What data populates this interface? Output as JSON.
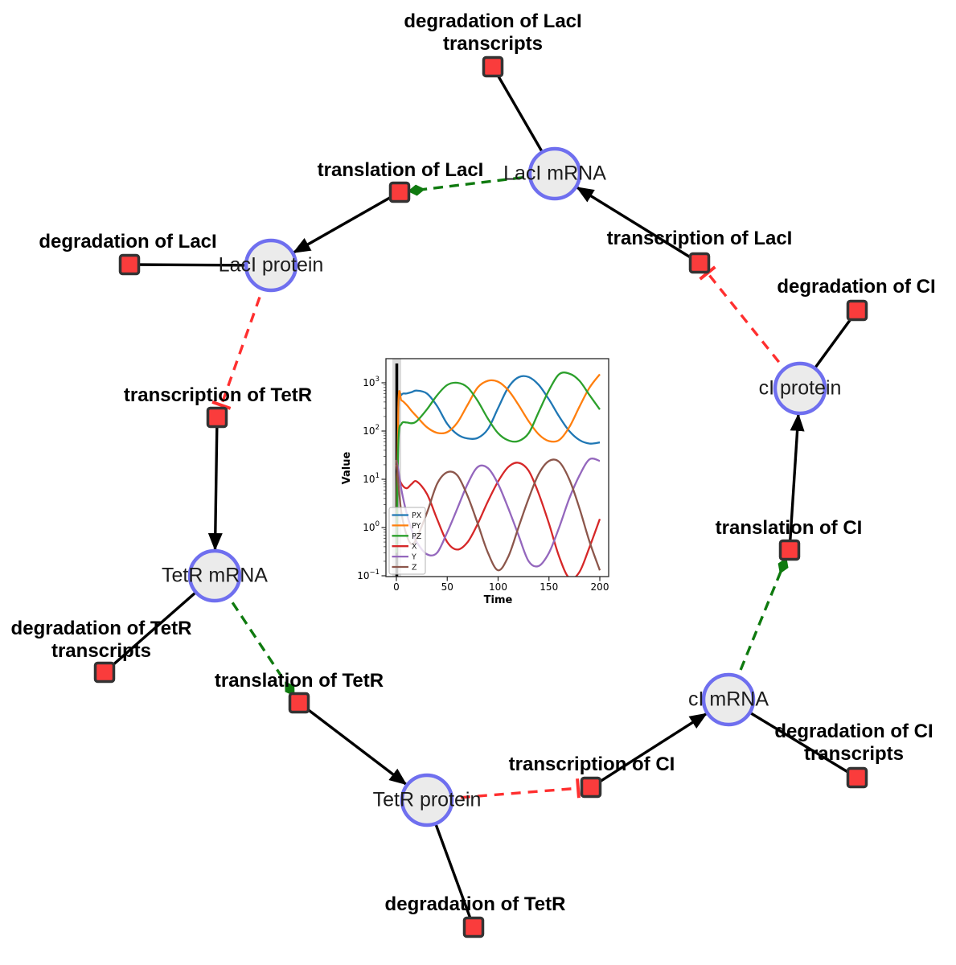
{
  "diagram": {
    "species": [
      {
        "label": "LacI mRNA"
      },
      {
        "label": "LacI protein"
      },
      {
        "label": "cI protein"
      },
      {
        "label": "TetR mRNA"
      },
      {
        "label": "cI mRNA"
      },
      {
        "label": "TetR protein"
      }
    ],
    "reactions": [
      {
        "lines": [
          "degradation of LacI",
          "transcripts"
        ]
      },
      {
        "lines": [
          "translation of LacI"
        ]
      },
      {
        "lines": [
          "degradation of LacI"
        ]
      },
      {
        "lines": [
          "transcription of LacI"
        ]
      },
      {
        "lines": [
          "degradation of CI"
        ]
      },
      {
        "lines": [
          "transcription of TetR"
        ]
      },
      {
        "lines": [
          "translation of CI"
        ]
      },
      {
        "lines": [
          "degradation of TetR",
          "transcripts"
        ]
      },
      {
        "lines": [
          "translation of TetR"
        ]
      },
      {
        "lines": [
          "transcription of CI"
        ]
      },
      {
        "lines": [
          "degradation of CI",
          "transcripts"
        ]
      },
      {
        "lines": [
          "degradation of TetR"
        ]
      }
    ],
    "colors": {
      "species_fill": "#ebebeb",
      "species_stroke": "#6f6fef",
      "reaction_fill": "#fa3c3c",
      "reaction_stroke": "#333333",
      "edge": "#000000",
      "catalysis_edge": "#0f7a0f",
      "inhibition_edge": "#ff2f2f"
    }
  },
  "chart_data": {
    "type": "line",
    "title": "",
    "xlabel": "Time",
    "ylabel": "Value",
    "y_scale": "log",
    "xlim": [
      0,
      200
    ],
    "ylim_log": [
      -1,
      3.45
    ],
    "x_ticks": [
      0,
      50,
      100,
      150,
      200
    ],
    "y_tick_exponents": [
      3,
      2,
      1,
      0,
      -1
    ],
    "grid": false,
    "legend_position": "lower left",
    "vline_x": 0,
    "x": [
      0,
      2,
      5,
      10,
      15,
      20,
      30,
      40,
      50,
      60,
      70,
      80,
      90,
      100,
      110,
      120,
      130,
      140,
      150,
      160,
      170,
      180,
      190,
      200
    ],
    "series": [
      {
        "name": "PX",
        "color": "#1f77b4",
        "values": [
          0.3,
          300,
          560,
          600,
          640,
          690,
          600,
          330,
          140,
          85,
          70,
          72,
          110,
          300,
          800,
          1300,
          1320,
          900,
          450,
          200,
          100,
          65,
          55,
          58
        ]
      },
      {
        "name": "PY",
        "color": "#ff7f0e",
        "values": [
          0.3,
          380,
          430,
          350,
          260,
          200,
          120,
          92,
          95,
          150,
          350,
          800,
          1100,
          1050,
          700,
          350,
          160,
          85,
          62,
          65,
          120,
          320,
          800,
          1500
        ]
      },
      {
        "name": "PZ",
        "color": "#2ca02c",
        "values": [
          0.3,
          60,
          140,
          150,
          145,
          160,
          280,
          550,
          900,
          1000,
          800,
          420,
          180,
          90,
          64,
          62,
          90,
          250,
          700,
          1500,
          1550,
          1100,
          550,
          280
        ]
      },
      {
        "name": "X",
        "color": "#d62728",
        "values": [
          20,
          12,
          8,
          6.5,
          8,
          9,
          5,
          1.5,
          0.5,
          0.35,
          0.5,
          1.2,
          3.5,
          9,
          18,
          22,
          15,
          5,
          1.2,
          0.25,
          0.09,
          0.12,
          0.4,
          1.5
        ]
      },
      {
        "name": "Y",
        "color": "#9467bd",
        "values": [
          25,
          15,
          6,
          2,
          0.9,
          0.5,
          0.28,
          0.3,
          0.8,
          2.5,
          8,
          18,
          17,
          8,
          2.5,
          0.7,
          0.2,
          0.16,
          0.3,
          1,
          4,
          12,
          26,
          24
        ]
      },
      {
        "name": "Z",
        "color": "#8c564b",
        "values": [
          25,
          8,
          2,
          0.7,
          0.45,
          0.6,
          2,
          8,
          14,
          12,
          4.5,
          1.2,
          0.3,
          0.13,
          0.25,
          1,
          4,
          13,
          24,
          23,
          10,
          2.5,
          0.5,
          0.13
        ]
      }
    ]
  }
}
